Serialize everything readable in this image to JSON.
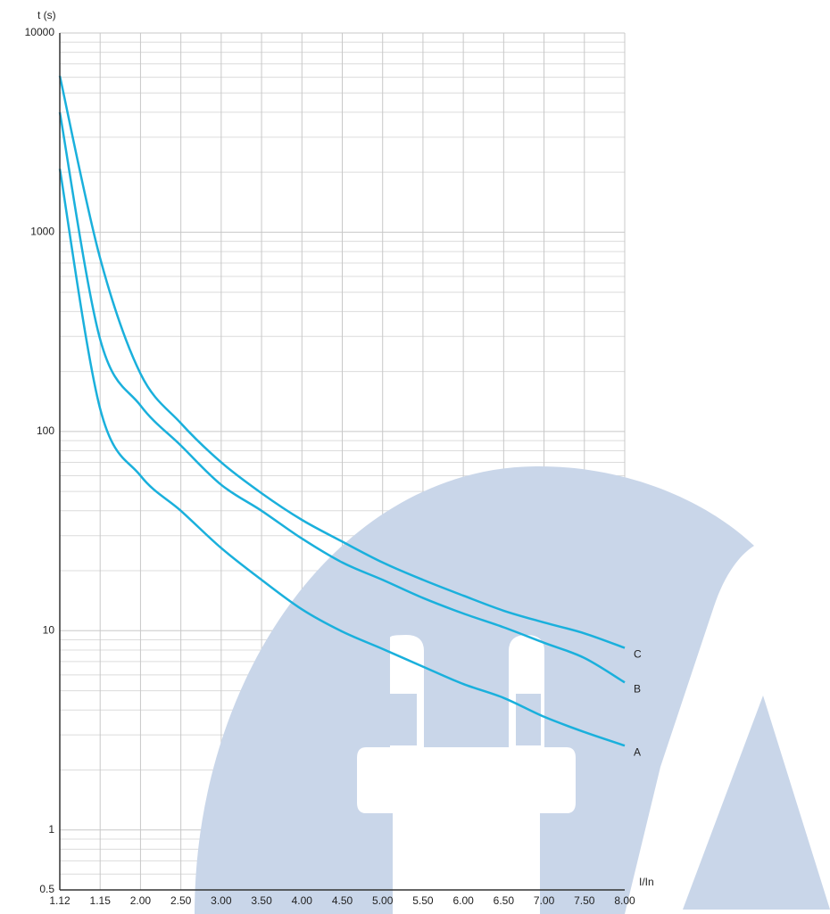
{
  "chart_data": {
    "type": "line",
    "y_label": "t (s)",
    "x_label": "I/In",
    "categories": [
      "1.12",
      "1.15",
      "2.00",
      "2.50",
      "3.00",
      "3.50",
      "4.00",
      "4.50",
      "5.00",
      "5.50",
      "6.00",
      "6.50",
      "7.00",
      "7.50",
      "8.00"
    ],
    "series": [
      {
        "name": "A",
        "color": "#1ab0dc",
        "values": [
          2080,
          130,
          60,
          40,
          26,
          18,
          12.8,
          9.9,
          8.1,
          6.6,
          5.4,
          4.6,
          3.7,
          3.1,
          2.65
        ]
      },
      {
        "name": "B",
        "color": "#1ab0dc",
        "values": [
          4000,
          290,
          135,
          85,
          54,
          40,
          29,
          22,
          18,
          14.6,
          12.2,
          10.4,
          8.7,
          7.3,
          5.5
        ]
      },
      {
        "name": "C",
        "color": "#1ab0dc",
        "values": [
          6100,
          740,
          195,
          110,
          70,
          49,
          36,
          28,
          22,
          18,
          15,
          12.6,
          11,
          9.7,
          8.2
        ]
      }
    ],
    "ylim": [
      0.5,
      10000
    ],
    "yticks": [
      0.5,
      1,
      10,
      100,
      1000,
      10000
    ],
    "log_scale": true,
    "grid": true
  }
}
